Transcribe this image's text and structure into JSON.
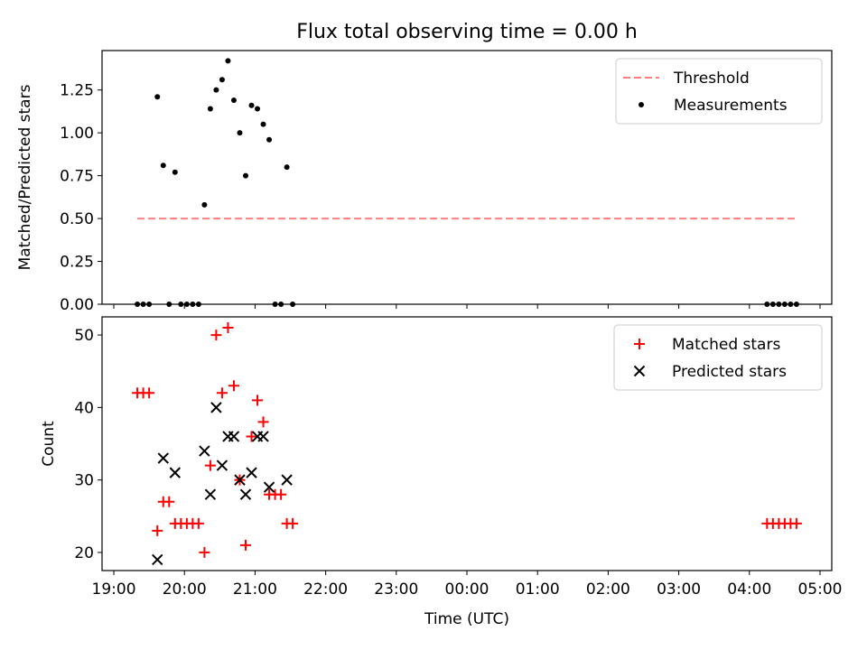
{
  "figure": {
    "title": "Flux total observing time = 0.00 h"
  },
  "chart_data": [
    {
      "type": "scatter",
      "ylabel": "Matched/Predicted stars",
      "xlim": [
        "19:00",
        "05:00"
      ],
      "ylim": [
        0,
        1.48
      ],
      "yticks": [
        0.0,
        0.25,
        0.5,
        0.75,
        1.0,
        1.25
      ],
      "ytick_labels": [
        "0.00",
        "0.25",
        "0.50",
        "0.75",
        "1.00",
        "1.25"
      ],
      "legend": "top-right",
      "threshold": {
        "name": "Threshold",
        "value": 0.5,
        "x": [
          "19:20",
          "04:40"
        ],
        "color": "#ff7f7f",
        "style": "dashed"
      },
      "series": [
        {
          "name": "Measurements",
          "color": "#000000",
          "marker": "dot",
          "points": [
            [
              "19:20",
              0
            ],
            [
              "19:25",
              0
            ],
            [
              "19:30",
              0
            ],
            [
              "19:37",
              1.21
            ],
            [
              "19:42",
              0.81
            ],
            [
              "19:47",
              0
            ],
            [
              "19:52",
              0.77
            ],
            [
              "19:57",
              0
            ],
            [
              "20:02",
              0
            ],
            [
              "20:07",
              0
            ],
            [
              "20:12",
              0
            ],
            [
              "20:17",
              0.58
            ],
            [
              "20:22",
              1.14
            ],
            [
              "20:27",
              1.25
            ],
            [
              "20:32",
              1.31
            ],
            [
              "20:37",
              1.42
            ],
            [
              "20:42",
              1.19
            ],
            [
              "20:47",
              1.0
            ],
            [
              "20:52",
              0.75
            ],
            [
              "20:57",
              1.16
            ],
            [
              "21:02",
              1.14
            ],
            [
              "21:07",
              1.05
            ],
            [
              "21:12",
              0.96
            ],
            [
              "21:17",
              0
            ],
            [
              "21:22",
              0
            ],
            [
              "21:27",
              0.8
            ],
            [
              "21:32",
              0
            ],
            [
              "04:15",
              0
            ],
            [
              "04:20",
              0
            ],
            [
              "04:25",
              0
            ],
            [
              "04:30",
              0
            ],
            [
              "04:35",
              0
            ],
            [
              "04:40",
              0
            ]
          ]
        }
      ]
    },
    {
      "type": "scatter",
      "xlabel": "Time (UTC)",
      "ylabel": "Count",
      "xlim": [
        "19:00",
        "05:00"
      ],
      "ylim": [
        17.5,
        52.5
      ],
      "yticks": [
        20,
        30,
        40,
        50
      ],
      "ytick_labels": [
        "20",
        "30",
        "40",
        "50"
      ],
      "xticks": [
        "19:00",
        "20:00",
        "21:00",
        "22:00",
        "23:00",
        "00:00",
        "01:00",
        "02:00",
        "03:00",
        "04:00",
        "05:00"
      ],
      "legend": "top-right",
      "series": [
        {
          "name": "Matched stars",
          "color": "#ff0000",
          "marker": "plus",
          "points": [
            [
              "19:20",
              42
            ],
            [
              "19:25",
              42
            ],
            [
              "19:30",
              42
            ],
            [
              "19:37",
              23
            ],
            [
              "19:42",
              27
            ],
            [
              "19:47",
              27
            ],
            [
              "19:52",
              24
            ],
            [
              "19:57",
              24
            ],
            [
              "20:02",
              24
            ],
            [
              "20:07",
              24
            ],
            [
              "20:12",
              24
            ],
            [
              "20:17",
              20
            ],
            [
              "20:22",
              32
            ],
            [
              "20:27",
              50
            ],
            [
              "20:32",
              42
            ],
            [
              "20:37",
              51
            ],
            [
              "20:42",
              43
            ],
            [
              "20:47",
              30
            ],
            [
              "20:52",
              21
            ],
            [
              "20:57",
              36
            ],
            [
              "21:02",
              41
            ],
            [
              "21:07",
              38
            ],
            [
              "21:12",
              28
            ],
            [
              "21:17",
              28
            ],
            [
              "21:22",
              28
            ],
            [
              "21:27",
              24
            ],
            [
              "21:32",
              24
            ],
            [
              "04:15",
              24
            ],
            [
              "04:20",
              24
            ],
            [
              "04:25",
              24
            ],
            [
              "04:30",
              24
            ],
            [
              "04:35",
              24
            ],
            [
              "04:40",
              24
            ]
          ]
        },
        {
          "name": "Predicted stars",
          "color": "#000000",
          "marker": "x",
          "points": [
            [
              "19:37",
              19
            ],
            [
              "19:42",
              33
            ],
            [
              "19:52",
              31
            ],
            [
              "20:17",
              34
            ],
            [
              "20:22",
              28
            ],
            [
              "20:27",
              40
            ],
            [
              "20:32",
              32
            ],
            [
              "20:37",
              36
            ],
            [
              "20:42",
              36
            ],
            [
              "20:47",
              30
            ],
            [
              "20:52",
              28
            ],
            [
              "20:57",
              31
            ],
            [
              "21:02",
              36
            ],
            [
              "21:07",
              36
            ],
            [
              "21:12",
              29
            ],
            [
              "21:27",
              30
            ]
          ]
        }
      ]
    }
  ]
}
